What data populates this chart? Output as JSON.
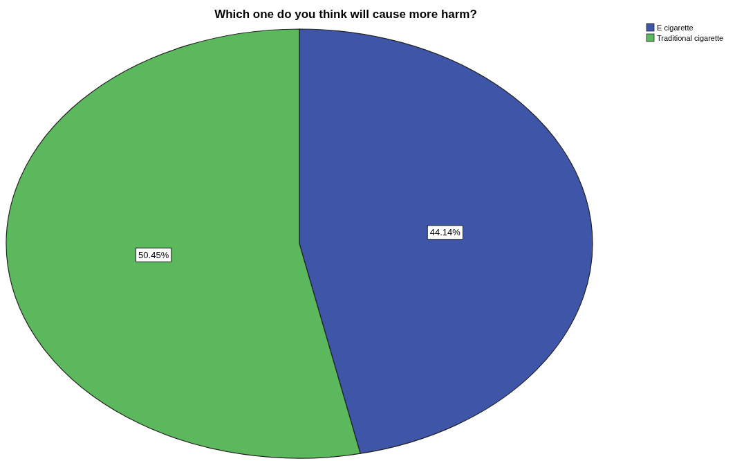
{
  "chart_data": {
    "type": "pie",
    "title": "Which one do you think will cause more harm?",
    "categories": [
      "E cigarette",
      "Traditional cigarette"
    ],
    "values": [
      44.14,
      50.45
    ],
    "colors": [
      "#3f55a8",
      "#5cb85c"
    ],
    "value_labels": [
      "44.14%",
      "50.45%"
    ],
    "legend": "top right"
  }
}
